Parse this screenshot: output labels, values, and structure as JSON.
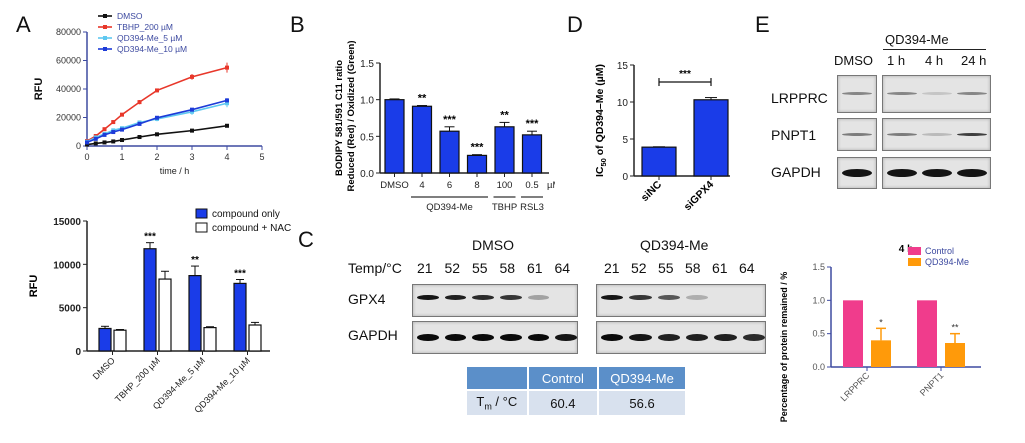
{
  "panels": {
    "A": "A",
    "B": "B",
    "C": "C",
    "D": "D",
    "E": "E"
  },
  "chart_data": [
    {
      "id": "A_line",
      "type": "line",
      "title": "",
      "xlabel": "time / h",
      "ylabel": "RFU",
      "xlim": [
        0,
        5
      ],
      "ylim": [
        0,
        80000
      ],
      "xticks": [
        0,
        1,
        2,
        3,
        4,
        5
      ],
      "yticks": [
        0,
        20000,
        40000,
        60000,
        80000
      ],
      "legend_position": "top-left",
      "x": [
        0,
        0.25,
        0.5,
        0.75,
        1,
        1.5,
        2,
        3,
        4
      ],
      "series": [
        {
          "name": "DMSO",
          "color": "#111111",
          "values": [
            1000,
            1800,
            2500,
            3200,
            4200,
            6300,
            8200,
            10800,
            14200
          ],
          "errors": [
            300,
            300,
            300,
            300,
            400,
            500,
            600,
            800,
            900
          ]
        },
        {
          "name": "TBHP_200 µM",
          "color": "#e8372a",
          "values": [
            3500,
            7000,
            11800,
            16800,
            22000,
            30800,
            39000,
            48500,
            55000
          ],
          "errors": [
            500,
            700,
            900,
            1000,
            1200,
            1500,
            1200,
            2000,
            3500
          ]
        },
        {
          "name": "QD394-Me_5 µM",
          "color": "#5fc8f0",
          "values": [
            3000,
            6000,
            8500,
            11000,
            12500,
            16500,
            19000,
            24000,
            30000
          ],
          "errors": [
            400,
            600,
            800,
            1000,
            1200,
            1400,
            1600,
            2200,
            2800
          ]
        },
        {
          "name": "QD394-Me_10 µM",
          "color": "#1d3bd8",
          "values": [
            2500,
            5000,
            7800,
            9800,
            11500,
            15500,
            19800,
            25500,
            32000
          ],
          "errors": [
            300,
            500,
            600,
            700,
            800,
            900,
            1000,
            1200,
            1500
          ]
        }
      ]
    },
    {
      "id": "A_bar",
      "type": "bar",
      "title": "",
      "xlabel": "",
      "ylabel": "RFU",
      "ylim": [
        0,
        15000
      ],
      "yticks": [
        0,
        5000,
        10000,
        15000
      ],
      "legend_position": "top-right",
      "categories": [
        "DMSO",
        "TBHP_200 µM",
        "QD394-Me_5 µM",
        "QD394-Me_10 µM"
      ],
      "series": [
        {
          "name": "compound only",
          "color": "#1a3ce8",
          "values": [
            2600,
            11800,
            8700,
            7800
          ],
          "errors": [
            250,
            700,
            1100,
            450
          ],
          "annotations": [
            "",
            "***",
            "**",
            "***"
          ]
        },
        {
          "name": "compound + NAC",
          "color": "#ffffff",
          "values": [
            2400,
            8300,
            2700,
            3000
          ],
          "errors": [
            80,
            900,
            100,
            300
          ],
          "annotations": [
            "",
            "",
            "",
            ""
          ]
        }
      ]
    },
    {
      "id": "B",
      "type": "bar",
      "title": "",
      "xlabel": "",
      "ylabel_line1": "BODIPY 581/591 C11 ratio",
      "ylabel_line2": "Reduced (Red) / Oxidized (Green)",
      "ylim": [
        0,
        1.5
      ],
      "yticks": [
        "0.0",
        "0.5",
        "1.0",
        "1.5"
      ],
      "categories": [
        "DMSO",
        "4",
        "6",
        "8",
        "100",
        "0.5"
      ],
      "unit_label": "µM",
      "groups": [
        {
          "label": "QD394-Me",
          "span": [
            1,
            3
          ]
        },
        {
          "label": "TBHP",
          "span": [
            4,
            4
          ]
        },
        {
          "label": "RSL3",
          "span": [
            5,
            5
          ]
        }
      ],
      "color": "#1a3ce8",
      "values": [
        1.0,
        0.91,
        0.57,
        0.24,
        0.63,
        0.52
      ],
      "errors": [
        0.01,
        0.01,
        0.06,
        0.01,
        0.06,
        0.05
      ],
      "annotations": [
        "",
        "**",
        "***",
        "***",
        "**",
        "***"
      ]
    },
    {
      "id": "D",
      "type": "bar",
      "title": "",
      "ylabel_pre": "IC",
      "ylabel_sub": "50",
      "ylabel_post": " of QD394–Me (µM)",
      "ylim": [
        0,
        15
      ],
      "yticks": [
        "0",
        "5",
        "10",
        "15"
      ],
      "categories": [
        "siNC",
        "siGPX4"
      ],
      "color": "#1a3ce8",
      "values": [
        3.9,
        10.3
      ],
      "errors": [
        0.05,
        0.3
      ],
      "bracket_label": "***"
    },
    {
      "id": "E_bar",
      "type": "bar",
      "title": "4 h",
      "ylabel": "Percentage of protein remained / %",
      "ylim": [
        0,
        1.5
      ],
      "yticks": [
        "0.0",
        "0.5",
        "1.0",
        "1.5"
      ],
      "legend_position": "top-right",
      "categories": [
        "LRPPRC",
        "PNPT1"
      ],
      "series": [
        {
          "name": "Control",
          "color": "#f03c8c",
          "values": [
            1.0,
            1.0
          ],
          "errors": [
            0,
            0
          ],
          "annotations": [
            "",
            ""
          ]
        },
        {
          "name": "QD394-Me",
          "color": "#ff9a0a",
          "values": [
            0.4,
            0.36
          ],
          "errors": [
            0.18,
            0.14
          ],
          "annotations": [
            "*",
            "**"
          ]
        }
      ]
    }
  ],
  "panelC": {
    "dmso_title": "DMSO",
    "qd_title": "QD394-Me",
    "temp_label": "Temp/°C",
    "temps": [
      "21",
      "52",
      "55",
      "58",
      "61",
      "64"
    ],
    "rows": [
      "GPX4",
      "GAPDH"
    ],
    "gpx4_dmso_intensity": [
      0.95,
      0.9,
      0.85,
      0.8,
      0.3,
      0.0
    ],
    "gpx4_qd_intensity": [
      0.95,
      0.8,
      0.65,
      0.25,
      0.0,
      0.0
    ],
    "gapdh_dmso_intensity": [
      1,
      1,
      1,
      1,
      1,
      0.95
    ],
    "gapdh_qd_intensity": [
      1,
      0.95,
      0.9,
      0.9,
      0.9,
      0.85
    ],
    "table": {
      "headers": [
        "",
        "Control",
        "QD394-Me"
      ],
      "row_label_main": "T",
      "row_label_sub": "m",
      "row_label_tail": " / °C",
      "values": [
        "60.4",
        "56.6"
      ]
    }
  },
  "panelE": {
    "group_label": "QD394-Me",
    "lanes": [
      "DMSO",
      "1 h",
      "4 h",
      "24 h"
    ],
    "rows": [
      "LRPPRC",
      "PNPT1",
      "GAPDH"
    ],
    "intensity": {
      "LRPPRC": [
        0.45,
        0.45,
        0.15,
        0.45
      ],
      "PNPT1": [
        0.5,
        0.5,
        0.2,
        0.8
      ],
      "GAPDH": [
        1,
        1,
        1,
        1
      ]
    }
  }
}
